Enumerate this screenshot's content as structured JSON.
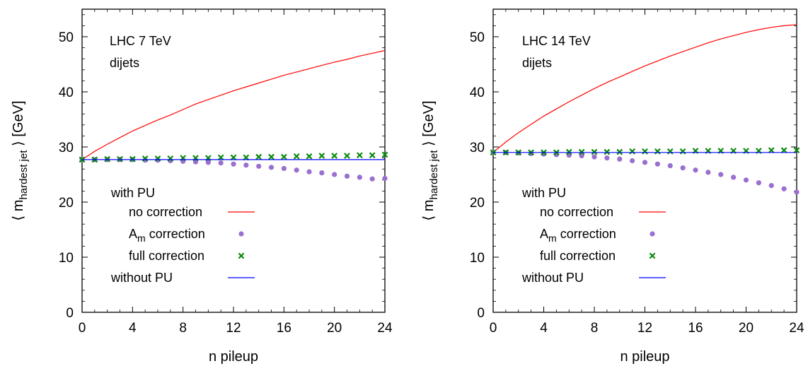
{
  "chart_data": [
    {
      "type": "line",
      "annotation": [
        "LHC 7 TeV",
        "dijets"
      ],
      "xlabel": "n pileup",
      "ylabel": {
        "pre": "⟨ m",
        "sub": "hardest jet",
        "post": " ⟩  [GeV]"
      },
      "xlim": [
        0,
        24
      ],
      "ylim": [
        0,
        55
      ],
      "xticks": [
        0,
        4,
        8,
        12,
        16,
        20,
        24
      ],
      "yticks": [
        0,
        10,
        20,
        30,
        40,
        50
      ],
      "legend": {
        "header": "with PU",
        "entries": [
          {
            "key": "no_correction",
            "label": "no correction",
            "indent": true
          },
          {
            "key": "am_correction",
            "label_main": "A",
            "label_sub": "m",
            "label_rest": " correction",
            "indent": true
          },
          {
            "key": "full_correction",
            "label": "full correction",
            "indent": true
          },
          {
            "key": "without_pu",
            "label": "without PU",
            "indent": false
          }
        ]
      },
      "colors": {
        "no_correction": "#ff0000",
        "am_correction": "#9a6fd0",
        "full_correction": "#0a8a0a",
        "without_pu": "#0000ff"
      },
      "series": [
        {
          "key": "no_correction",
          "style": "line",
          "x": [
            0,
            1,
            2,
            3,
            4,
            5,
            6,
            7,
            8,
            9,
            10,
            11,
            12,
            13,
            14,
            15,
            16,
            17,
            18,
            19,
            20,
            21,
            22,
            23,
            24
          ],
          "y": [
            27.7,
            29.2,
            30.5,
            31.7,
            32.9,
            33.9,
            34.9,
            35.8,
            36.8,
            37.8,
            38.6,
            39.4,
            40.2,
            40.9,
            41.6,
            42.3,
            43.0,
            43.6,
            44.2,
            44.8,
            45.4,
            45.9,
            46.5,
            47.0,
            47.5
          ]
        },
        {
          "key": "am_correction",
          "style": "dots",
          "x": [
            0,
            1,
            2,
            3,
            4,
            5,
            6,
            7,
            8,
            9,
            10,
            11,
            12,
            13,
            14,
            15,
            16,
            17,
            18,
            19,
            20,
            21,
            22,
            23,
            24
          ],
          "y": [
            27.7,
            27.7,
            27.7,
            27.7,
            27.7,
            27.6,
            27.6,
            27.5,
            27.4,
            27.3,
            27.2,
            27.1,
            26.9,
            26.7,
            26.5,
            26.3,
            26.1,
            25.8,
            25.5,
            25.3,
            25.0,
            24.7,
            24.5,
            24.2,
            24.3
          ]
        },
        {
          "key": "full_correction",
          "style": "crosses",
          "x": [
            0,
            1,
            2,
            3,
            4,
            5,
            6,
            7,
            8,
            9,
            10,
            11,
            12,
            13,
            14,
            15,
            16,
            17,
            18,
            19,
            20,
            21,
            22,
            23,
            24
          ],
          "y": [
            27.7,
            27.7,
            27.8,
            27.8,
            27.8,
            27.9,
            27.9,
            27.9,
            28.0,
            28.0,
            28.0,
            28.1,
            28.1,
            28.1,
            28.2,
            28.2,
            28.2,
            28.3,
            28.3,
            28.4,
            28.4,
            28.4,
            28.5,
            28.5,
            28.6
          ]
        },
        {
          "key": "without_pu",
          "style": "line",
          "x": [
            0,
            24
          ],
          "y": [
            27.7,
            27.7
          ]
        }
      ]
    },
    {
      "type": "line",
      "annotation": [
        "LHC 14 TeV",
        "dijets"
      ],
      "xlabel": "n pileup",
      "ylabel": {
        "pre": "⟨ m",
        "sub": "hardest jet",
        "post": " ⟩  [GeV]"
      },
      "xlim": [
        0,
        24
      ],
      "ylim": [
        0,
        55
      ],
      "xticks": [
        0,
        4,
        8,
        12,
        16,
        20,
        24
      ],
      "yticks": [
        0,
        10,
        20,
        30,
        40,
        50
      ],
      "legend": {
        "header": "with PU",
        "entries": [
          {
            "key": "no_correction",
            "label": "no correction",
            "indent": true
          },
          {
            "key": "am_correction",
            "label_main": "A",
            "label_sub": "m",
            "label_rest": " correction",
            "indent": true
          },
          {
            "key": "full_correction",
            "label": "full correction",
            "indent": true
          },
          {
            "key": "without_pu",
            "label": "without PU",
            "indent": false
          }
        ]
      },
      "colors": {
        "no_correction": "#ff0000",
        "am_correction": "#9a6fd0",
        "full_correction": "#0a8a0a",
        "without_pu": "#0000ff"
      },
      "series": [
        {
          "key": "no_correction",
          "style": "line",
          "x": [
            0,
            1,
            2,
            3,
            4,
            5,
            6,
            7,
            8,
            9,
            10,
            11,
            12,
            13,
            14,
            15,
            16,
            17,
            18,
            19,
            20,
            21,
            22,
            23,
            24
          ],
          "y": [
            29.0,
            30.9,
            32.6,
            34.1,
            35.6,
            36.9,
            38.2,
            39.4,
            40.6,
            41.7,
            42.7,
            43.7,
            44.7,
            45.6,
            46.5,
            47.3,
            48.1,
            48.9,
            49.6,
            50.2,
            50.8,
            51.3,
            51.7,
            52.0,
            52.2
          ]
        },
        {
          "key": "am_correction",
          "style": "dots",
          "x": [
            0,
            1,
            2,
            3,
            4,
            5,
            6,
            7,
            8,
            9,
            10,
            11,
            12,
            13,
            14,
            15,
            16,
            17,
            18,
            19,
            20,
            21,
            22,
            23,
            24
          ],
          "y": [
            29.0,
            29.0,
            28.9,
            28.8,
            28.7,
            28.6,
            28.5,
            28.4,
            28.2,
            28.0,
            27.8,
            27.5,
            27.2,
            26.9,
            26.6,
            26.2,
            25.8,
            25.4,
            25.0,
            24.5,
            24.0,
            23.5,
            23.0,
            22.4,
            21.8
          ]
        },
        {
          "key": "full_correction",
          "style": "crosses",
          "x": [
            0,
            1,
            2,
            3,
            4,
            5,
            6,
            7,
            8,
            9,
            10,
            11,
            12,
            13,
            14,
            15,
            16,
            17,
            18,
            19,
            20,
            21,
            22,
            23,
            24
          ],
          "y": [
            29.0,
            29.0,
            29.0,
            29.0,
            29.0,
            29.0,
            29.1,
            29.1,
            29.1,
            29.1,
            29.1,
            29.2,
            29.2,
            29.2,
            29.2,
            29.2,
            29.3,
            29.3,
            29.3,
            29.3,
            29.3,
            29.3,
            29.4,
            29.4,
            29.4
          ]
        },
        {
          "key": "without_pu",
          "style": "line",
          "x": [
            0,
            24
          ],
          "y": [
            29.0,
            29.0
          ]
        }
      ]
    }
  ]
}
